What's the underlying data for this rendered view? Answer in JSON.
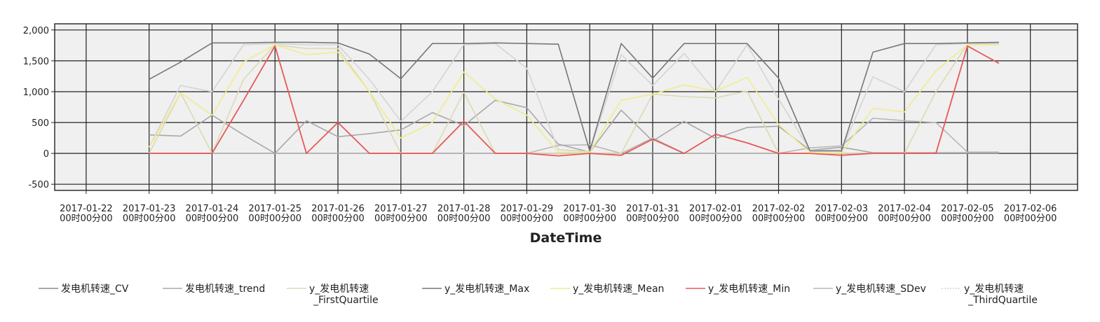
{
  "chart_data": {
    "type": "line",
    "xlabel": "DateTime",
    "ylabel": "",
    "ylim": [
      -600,
      2100
    ],
    "y_ticks": [
      2000,
      1500,
      1000,
      500,
      0,
      -500
    ],
    "y_tick_labels": [
      "2,000",
      "1,500",
      "1,000",
      "500",
      "0",
      "-500"
    ],
    "x_range": [
      "2017-01-21 12:00",
      "2017-02-06 18:00"
    ],
    "x_ticks": [
      {
        "date": "2017-01-22",
        "time": "00时00分00"
      },
      {
        "date": "2017-01-23",
        "time": "00时00分00"
      },
      {
        "date": "2017-01-24",
        "time": "00时00分00"
      },
      {
        "date": "2017-01-25",
        "time": "00时00分00"
      },
      {
        "date": "2017-01-26",
        "time": "00时00分00"
      },
      {
        "date": "2017-01-27",
        "time": "00时00分00"
      },
      {
        "date": "2017-01-28",
        "time": "00时00分00"
      },
      {
        "date": "2017-01-29",
        "time": "00时00分00"
      },
      {
        "date": "2017-01-30",
        "time": "00时00分00"
      },
      {
        "date": "2017-01-31",
        "time": "00时00分00"
      },
      {
        "date": "2017-02-01",
        "time": "00时00分00"
      },
      {
        "date": "2017-02-02",
        "time": "00时00分00"
      },
      {
        "date": "2017-02-03",
        "time": "00时00分00"
      },
      {
        "date": "2017-02-04",
        "time": "00时00分00"
      },
      {
        "date": "2017-02-05",
        "time": "00时00分00"
      },
      {
        "date": "2017-02-06",
        "time": "00时00分00"
      }
    ],
    "grid": true,
    "legend_position": "bottom",
    "x": [
      "2017-01-23 00:00",
      "2017-01-23 12:00",
      "2017-01-24 00:00",
      "2017-01-24 12:00",
      "2017-01-25 00:00",
      "2017-01-25 12:00",
      "2017-01-26 00:00",
      "2017-01-26 12:00",
      "2017-01-27 00:00",
      "2017-01-27 12:00",
      "2017-01-28 00:00",
      "2017-01-28 12:00",
      "2017-01-29 00:00",
      "2017-01-29 12:00",
      "2017-01-30 00:00",
      "2017-01-30 12:00",
      "2017-01-31 00:00",
      "2017-01-31 12:00",
      "2017-02-01 00:00",
      "2017-02-01 12:00",
      "2017-02-02 00:00",
      "2017-02-02 12:00",
      "2017-02-03 00:00",
      "2017-02-03 12:00",
      "2017-02-04 00:00",
      "2017-02-04 12:00",
      "2017-02-05 00:00",
      "2017-02-05 12:00"
    ],
    "series": [
      {
        "name": "发电机转速_CV",
        "color": "#8a8a8a",
        "values": [
          0,
          0,
          0,
          0,
          0,
          0,
          0,
          0,
          0,
          0,
          0,
          0,
          0,
          0,
          0,
          0,
          0,
          0,
          0,
          0,
          0,
          0,
          0,
          0,
          0,
          0,
          0,
          0
        ]
      },
      {
        "name": "发电机转速_trend",
        "color": "#a8a8a8",
        "values": [
          300,
          280,
          620,
          300,
          0,
          530,
          270,
          320,
          380,
          660,
          450,
          860,
          740,
          150,
          20,
          700,
          200,
          520,
          240,
          420,
          440,
          50,
          100,
          10,
          10,
          10,
          10,
          10
        ]
      },
      {
        "name": "y_发电机转速_FirstQuartile",
        "color": "#ddd9b3",
        "values": [
          0,
          980,
          0,
          1200,
          1760,
          1700,
          1700,
          1000,
          0,
          0,
          990,
          0,
          0,
          0,
          0,
          0,
          960,
          920,
          900,
          1010,
          0,
          0,
          0,
          0,
          0,
          1000,
          1770,
          1760
        ]
      },
      {
        "name": "y_发电机转速_Max",
        "color": "#777777",
        "values": [
          1200,
          1480,
          1790,
          1790,
          1800,
          1800,
          1790,
          1610,
          1210,
          1780,
          1780,
          1790,
          1780,
          1770,
          40,
          1780,
          1220,
          1780,
          1780,
          1780,
          1220,
          40,
          40,
          1640,
          1780,
          1780,
          1790,
          1800
        ]
      },
      {
        "name": "y_发电机转速_Mean",
        "color": "#f0ec8c",
        "values": [
          100,
          980,
          620,
          1480,
          1760,
          1600,
          1640,
          1000,
          250,
          500,
          1320,
          880,
          620,
          20,
          20,
          860,
          960,
          1110,
          1010,
          1230,
          470,
          10,
          10,
          730,
          670,
          1340,
          1760,
          1760
        ]
      },
      {
        "name": "y_发电机转速_Min",
        "color": "#e85858",
        "values": [
          0,
          0,
          0,
          860,
          1740,
          0,
          500,
          0,
          0,
          0,
          520,
          0,
          0,
          -40,
          0,
          -30,
          230,
          0,
          310,
          170,
          0,
          0,
          -30,
          0,
          0,
          0,
          1740,
          1460
        ]
      },
      {
        "name": "y_发电机转速_SDev",
        "color": "#b8b8b8",
        "values": [
          0,
          0,
          0,
          0,
          0,
          0,
          0,
          0,
          0,
          0,
          0,
          0,
          0,
          130,
          140,
          0,
          250,
          0,
          0,
          0,
          0,
          90,
          120,
          570,
          530,
          500,
          20,
          20
        ]
      },
      {
        "name": "y_发电机转速_ThirdQuartile",
        "color": "#d4d4d4",
        "values": [
          100,
          1100,
          1000,
          1760,
          1780,
          1760,
          1760,
          1200,
          520,
          1000,
          1760,
          1780,
          1380,
          60,
          30,
          1600,
          1100,
          1620,
          1000,
          1760,
          880,
          50,
          50,
          1240,
          1000,
          1760,
          1780,
          1780
        ]
      }
    ]
  },
  "legend_layout": [
    {
      "index": 0,
      "lines": [
        "发电机转速_CV"
      ]
    },
    {
      "index": 1,
      "lines": [
        "发电机转速_trend"
      ]
    },
    {
      "index": 2,
      "lines": [
        "y_发电机转速",
        "_FirstQuartile"
      ]
    },
    {
      "index": 3,
      "lines": [
        "y_发电机转速_Max"
      ]
    },
    {
      "index": 4,
      "lines": [
        "y_发电机转速_Mean"
      ]
    },
    {
      "index": 5,
      "lines": [
        "y_发电机转速_Min"
      ]
    },
    {
      "index": 6,
      "lines": [
        "y_发电机转速_SDev"
      ]
    },
    {
      "index": 7,
      "lines": [
        "y_发电机转速",
        "_ThirdQuartile"
      ]
    }
  ]
}
